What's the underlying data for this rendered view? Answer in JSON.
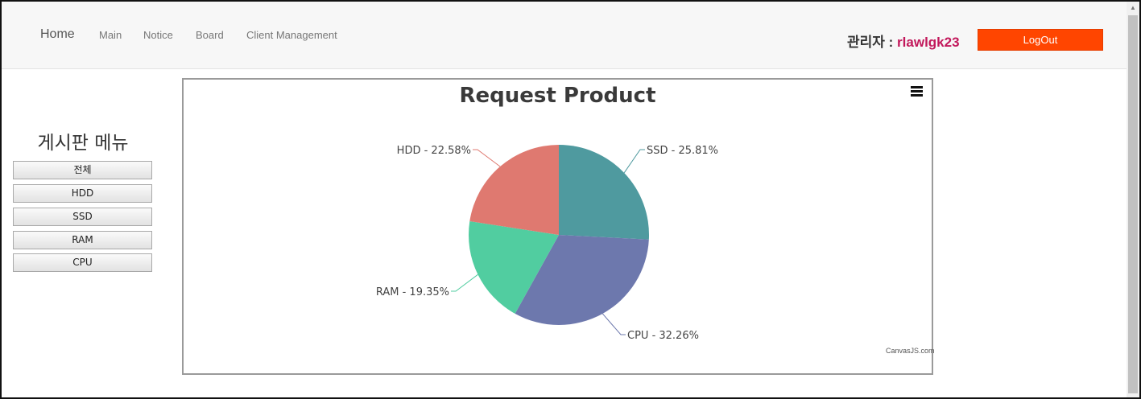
{
  "nav": {
    "home": "Home",
    "links": [
      "Main",
      "Notice",
      "Board",
      "Client Management"
    ]
  },
  "user": {
    "role_label": "관리자 :",
    "username": "rlawlgk23",
    "logout_label": "LogOut"
  },
  "sidebar": {
    "title": "게시판 메뉴",
    "items": [
      "전체",
      "HDD",
      "SSD",
      "RAM",
      "CPU"
    ]
  },
  "colors": {
    "logout": "#ff4500",
    "username": "#c2185b",
    "SSD": "#4f9a9f",
    "CPU": "#6d78ad",
    "RAM": "#51cda0",
    "HDD": "#df7970"
  },
  "icons": {
    "chart_menu": "hamburger-menu-icon"
  },
  "chart_data": {
    "type": "pie",
    "title": "Request Product",
    "credit": "CanvasJS.com",
    "slices": [
      {
        "name": "SSD",
        "value": 25.81,
        "label": "SSD - 25.81%"
      },
      {
        "name": "CPU",
        "value": 32.26,
        "label": "CPU - 32.26%"
      },
      {
        "name": "RAM",
        "value": 19.35,
        "label": "RAM - 19.35%"
      },
      {
        "name": "HDD",
        "value": 22.58,
        "label": "HDD - 22.58%"
      }
    ]
  }
}
